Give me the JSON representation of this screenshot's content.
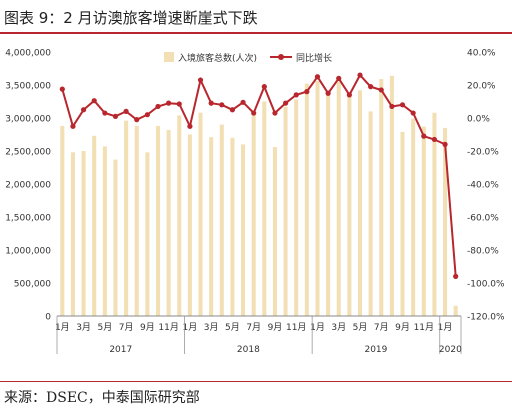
{
  "title": "图表 9：2 月访澳旅客增速断崖式下跌",
  "source": "来源：DSEC，中泰国际研究部",
  "colors": {
    "bar": "#f2dfb3",
    "line": "#b8272d",
    "accent": "#b8272d"
  },
  "chart_data": {
    "type": "bar",
    "legend_position": "top-center",
    "grid": false,
    "categories": [
      "1月",
      "2月",
      "3月",
      "4月",
      "5月",
      "6月",
      "7月",
      "8月",
      "9月",
      "10月",
      "11月",
      "12月",
      "1月",
      "2月",
      "3月",
      "4月",
      "5月",
      "6月",
      "7月",
      "8月",
      "9月",
      "10月",
      "11月",
      "12月",
      "1月",
      "2月",
      "3月",
      "4月",
      "5月",
      "6月",
      "7月",
      "8月",
      "9月",
      "10月",
      "11月",
      "12月",
      "1月",
      "2月"
    ],
    "x_tick_labels": [
      "1月",
      "3月",
      "5月",
      "7月",
      "9月",
      "11月",
      "1月",
      "3月",
      "5月",
      "7月",
      "9月",
      "11月",
      "1月",
      "3月",
      "5月",
      "7月",
      "9月",
      "11月",
      "1月"
    ],
    "years": [
      {
        "label": "2017",
        "start": 0,
        "end": 11
      },
      {
        "label": "2018",
        "start": 12,
        "end": 23
      },
      {
        "label": "2019",
        "start": 24,
        "end": 35
      },
      {
        "label": "2020",
        "start": 36,
        "end": 37
      }
    ],
    "series": [
      {
        "name": "入境旅客总数(人次)",
        "type": "bar",
        "axis": "left",
        "values": [
          2880000,
          2480000,
          2500000,
          2730000,
          2570000,
          2370000,
          2960000,
          2880000,
          2480000,
          2880000,
          2820000,
          3040000,
          2750000,
          3080000,
          2710000,
          2900000,
          2700000,
          2600000,
          3070000,
          3250000,
          2560000,
          3170000,
          3280000,
          3520000,
          3560000,
          3400000,
          3550000,
          3380000,
          3420000,
          3100000,
          3590000,
          3640000,
          2790000,
          2990000,
          2870000,
          3080000,
          2850000,
          155000
        ]
      },
      {
        "name": "同比增长",
        "type": "line",
        "axis": "right",
        "values": [
          17.5,
          -5,
          5,
          10.5,
          3,
          1,
          4,
          -1,
          2,
          7,
          9,
          8.5,
          -5,
          23,
          9,
          8,
          5,
          9.5,
          3,
          19,
          3,
          9,
          14,
          16,
          25,
          15,
          24,
          14,
          26,
          19,
          17,
          7,
          8,
          3,
          -11,
          -13,
          -16,
          -96
        ]
      }
    ],
    "y_left": {
      "min": 0,
      "max": 4000000,
      "ticks": [
        "0",
        "500,000",
        "1,000,000",
        "1,500,000",
        "2,000,000",
        "2,500,000",
        "3,000,000",
        "3,500,000",
        "4,000,000"
      ]
    },
    "y_right": {
      "min": -120,
      "max": 40,
      "ticks": [
        "-120.0%",
        "-100.0%",
        "-80.0%",
        "-60.0%",
        "-40.0%",
        "-20.0%",
        "0.0%",
        "20.0%",
        "40.0%"
      ]
    }
  }
}
